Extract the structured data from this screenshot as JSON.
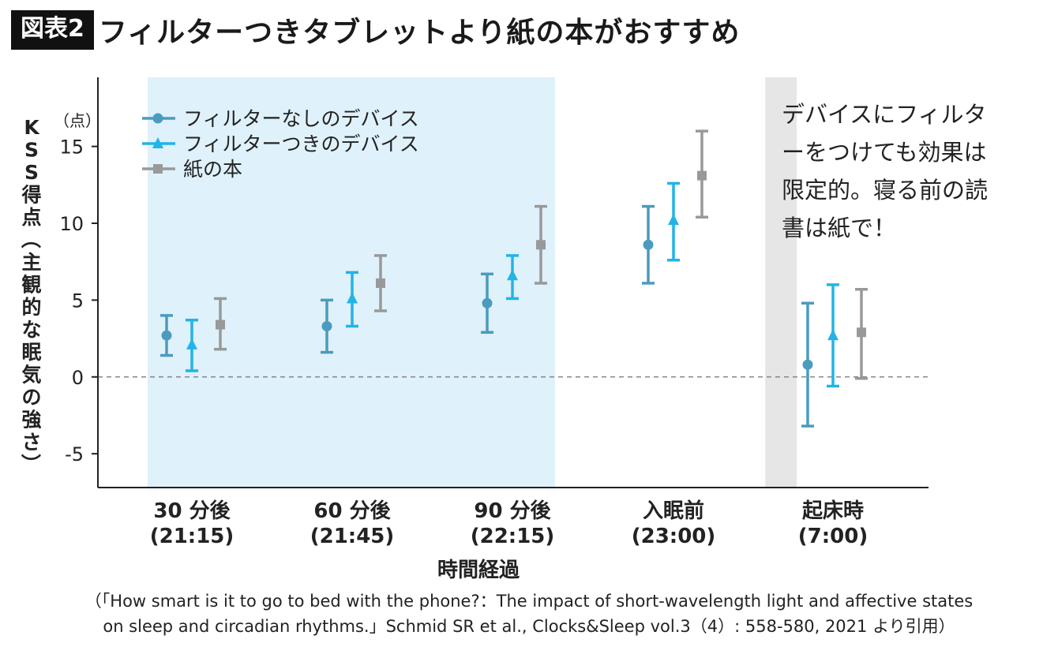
{
  "header": {
    "tag": "図表2",
    "title": "フィルターつきタブレットより紙の本がおすすめ"
  },
  "annotation": {
    "lines": [
      "デバイスにフィルタ",
      "ーをつけても効果は",
      "限定的。寝る前の読",
      "書は紙で！"
    ]
  },
  "source": {
    "line1": "（「How smart is it to go to bed with the phone?：The impact of short-wavelength light and affective states",
    "line2": "on sleep and circadian rhythms.」Schmid SR et al.,  Clocks&Sleep vol.3（4）: 558-580,  2021 より引用）"
  },
  "chart_data": {
    "type": "scatter",
    "ylabel": "KSS得点（主観的な眠気の強さ）",
    "yunit": "（点）",
    "xlabel": "時間経過",
    "ylim": [
      -7.2,
      19.5
    ],
    "yticks": [
      "-5",
      "0",
      "5",
      "10",
      "15"
    ],
    "reference_line_y": 0,
    "legend_position": "top-left",
    "categories": [
      {
        "label": "30 分後",
        "sublabel": "(21:15)"
      },
      {
        "label": "60 分後",
        "sublabel": "(21:45)"
      },
      {
        "label": "90 分後",
        "sublabel": "(22:15)"
      },
      {
        "label": "入眠前",
        "sublabel": "(23:00)"
      },
      {
        "label": "起床時",
        "sublabel": "(7:00)"
      }
    ],
    "shaded_regions": [
      {
        "from_category": 0,
        "to_category": 2,
        "color": "#dff1fa"
      },
      {
        "from_category": 3.6,
        "to_category": 4,
        "color": "#e6e6e6"
      }
    ],
    "series": [
      {
        "name": "フィルターなしのデバイス",
        "marker": "circle",
        "color": "#4a9bbf",
        "values": [
          2.7,
          3.3,
          4.8,
          8.6,
          0.8
        ],
        "lower": [
          1.4,
          1.6,
          2.9,
          6.1,
          -3.2
        ],
        "upper": [
          4.0,
          5.0,
          6.7,
          11.1,
          4.8
        ]
      },
      {
        "name": "フィルターつきのデバイス",
        "marker": "triangle",
        "color": "#22b4e6",
        "values": [
          2.1,
          5.1,
          6.6,
          10.2,
          2.7
        ],
        "lower": [
          0.4,
          3.3,
          5.1,
          7.6,
          -0.6
        ],
        "upper": [
          3.7,
          6.8,
          7.9,
          12.6,
          6.0
        ]
      },
      {
        "name": "紙の本",
        "marker": "square",
        "color": "#999999",
        "values": [
          3.4,
          6.1,
          8.6,
          13.1,
          2.9
        ],
        "lower": [
          1.8,
          4.3,
          6.1,
          10.4,
          -0.1
        ],
        "upper": [
          5.1,
          7.9,
          11.1,
          16.0,
          5.7
        ]
      }
    ]
  }
}
